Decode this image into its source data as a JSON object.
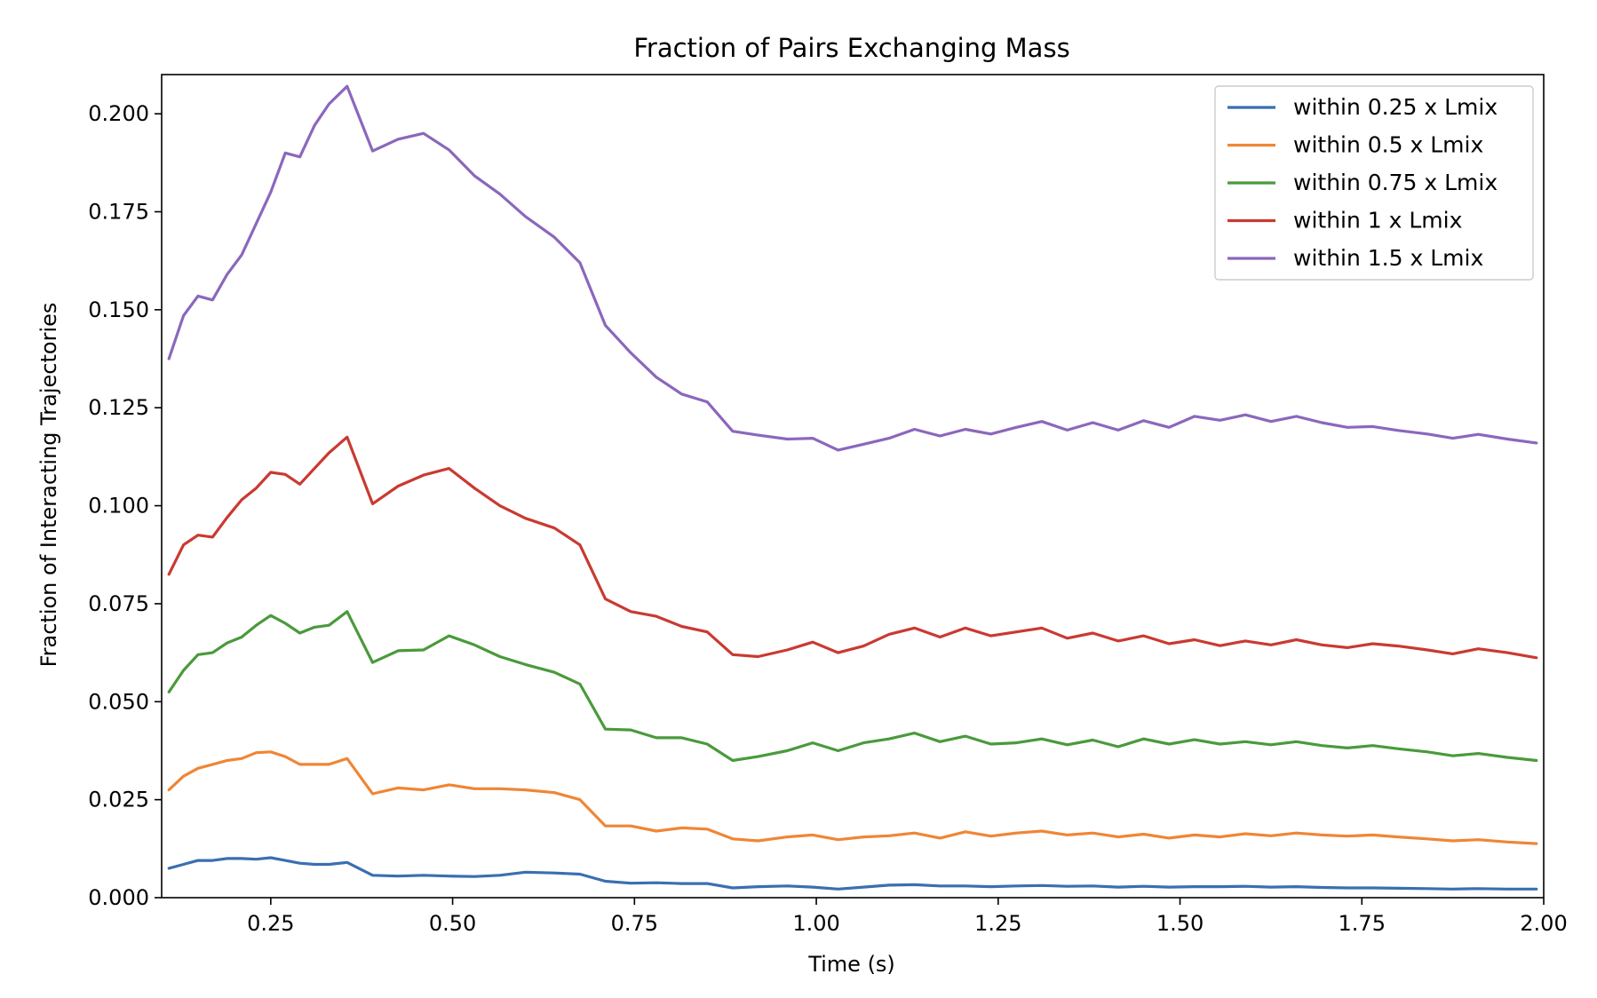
{
  "chart_data": {
    "type": "line",
    "title": "Fraction of Pairs Exchanging Mass",
    "xlabel": "Time (s)",
    "ylabel": "Fraction of Interacting Trajectories",
    "xlim": [
      0.1,
      2.0
    ],
    "ylim": [
      0.0,
      0.21
    ],
    "xticks": [
      "0.25",
      "0.50",
      "0.75",
      "1.00",
      "1.25",
      "1.50",
      "1.75",
      "2.00"
    ],
    "xtick_values": [
      0.25,
      0.5,
      0.75,
      1.0,
      1.25,
      1.5,
      1.75,
      2.0
    ],
    "yticks": [
      "0.000",
      "0.025",
      "0.050",
      "0.075",
      "0.100",
      "0.125",
      "0.150",
      "0.175",
      "0.200"
    ],
    "ytick_values": [
      0.0,
      0.025,
      0.05,
      0.075,
      0.1,
      0.125,
      0.15,
      0.175,
      0.2
    ],
    "grid": false,
    "legend_position": "top-right",
    "x": [
      0.11,
      0.13,
      0.15,
      0.17,
      0.19,
      0.21,
      0.23,
      0.25,
      0.27,
      0.29,
      0.31,
      0.33,
      0.355,
      0.39,
      0.425,
      0.46,
      0.495,
      0.53,
      0.565,
      0.6,
      0.64,
      0.675,
      0.71,
      0.745,
      0.78,
      0.815,
      0.85,
      0.885,
      0.92,
      0.96,
      0.995,
      1.03,
      1.065,
      1.1,
      1.135,
      1.17,
      1.205,
      1.24,
      1.275,
      1.31,
      1.345,
      1.38,
      1.415,
      1.45,
      1.485,
      1.52,
      1.555,
      1.59,
      1.625,
      1.66,
      1.695,
      1.73,
      1.765,
      1.8,
      1.84,
      1.875,
      1.91,
      1.95,
      1.99
    ],
    "series": [
      {
        "name": "within 0.25 x Lmix",
        "color": "#3a6fb0",
        "values": [
          0.0075,
          0.0085,
          0.0095,
          0.0095,
          0.01,
          0.01,
          0.0098,
          0.0102,
          0.0095,
          0.0088,
          0.0085,
          0.0085,
          0.009,
          0.0057,
          0.0055,
          0.0057,
          0.0055,
          0.0054,
          0.0057,
          0.0065,
          0.0063,
          0.006,
          0.0042,
          0.0037,
          0.0038,
          0.0036,
          0.0036,
          0.0025,
          0.0028,
          0.003,
          0.0027,
          0.0022,
          0.0027,
          0.0032,
          0.0033,
          0.003,
          0.003,
          0.0028,
          0.003,
          0.0031,
          0.0029,
          0.003,
          0.0027,
          0.0029,
          0.0027,
          0.0028,
          0.0028,
          0.0029,
          0.0027,
          0.0028,
          0.0026,
          0.0025,
          0.0025,
          0.0024,
          0.0023,
          0.0022,
          0.0023,
          0.0022,
          0.0022
        ]
      },
      {
        "name": "within 0.5 x Lmix",
        "color": "#ef8636",
        "values": [
          0.0275,
          0.031,
          0.033,
          0.034,
          0.035,
          0.0355,
          0.037,
          0.0372,
          0.036,
          0.034,
          0.034,
          0.034,
          0.0355,
          0.0265,
          0.028,
          0.0275,
          0.0288,
          0.0278,
          0.0278,
          0.0275,
          0.0268,
          0.025,
          0.0183,
          0.0183,
          0.017,
          0.0178,
          0.0175,
          0.015,
          0.0145,
          0.0155,
          0.016,
          0.0148,
          0.0155,
          0.0158,
          0.0165,
          0.0152,
          0.0168,
          0.0157,
          0.0165,
          0.017,
          0.016,
          0.0165,
          0.0155,
          0.0162,
          0.0152,
          0.016,
          0.0155,
          0.0163,
          0.0158,
          0.0165,
          0.016,
          0.0157,
          0.016,
          0.0155,
          0.015,
          0.0145,
          0.0148,
          0.0142,
          0.0138
        ]
      },
      {
        "name": "within 0.75 x Lmix",
        "color": "#4a9a3c",
        "values": [
          0.0525,
          0.058,
          0.062,
          0.0625,
          0.065,
          0.0665,
          0.0695,
          0.072,
          0.07,
          0.0675,
          0.069,
          0.0695,
          0.073,
          0.06,
          0.063,
          0.0632,
          0.0668,
          0.0645,
          0.0615,
          0.0595,
          0.0575,
          0.0545,
          0.043,
          0.0428,
          0.0408,
          0.0408,
          0.0392,
          0.035,
          0.036,
          0.0375,
          0.0395,
          0.0375,
          0.0395,
          0.0405,
          0.042,
          0.0398,
          0.0412,
          0.0392,
          0.0395,
          0.0405,
          0.039,
          0.0402,
          0.0385,
          0.0405,
          0.0392,
          0.0403,
          0.0392,
          0.0398,
          0.039,
          0.0398,
          0.0388,
          0.0382,
          0.0388,
          0.038,
          0.0372,
          0.0362,
          0.0368,
          0.0358,
          0.035
        ]
      },
      {
        "name": "within 1 x Lmix",
        "color": "#c93a31",
        "values": [
          0.0825,
          0.09,
          0.0925,
          0.092,
          0.097,
          0.1015,
          0.1045,
          0.1085,
          0.108,
          0.1055,
          0.1095,
          0.1135,
          0.1175,
          0.1005,
          0.105,
          0.1078,
          0.1095,
          0.1045,
          0.1,
          0.0968,
          0.0943,
          0.09,
          0.0762,
          0.073,
          0.0718,
          0.0692,
          0.0678,
          0.062,
          0.0615,
          0.0632,
          0.0652,
          0.0625,
          0.0642,
          0.0672,
          0.0688,
          0.0665,
          0.0688,
          0.0668,
          0.0678,
          0.0688,
          0.0662,
          0.0675,
          0.0655,
          0.0668,
          0.0648,
          0.0658,
          0.0643,
          0.0655,
          0.0645,
          0.0658,
          0.0645,
          0.0638,
          0.0648,
          0.0642,
          0.0632,
          0.0622,
          0.0635,
          0.0625,
          0.0612
        ]
      },
      {
        "name": "within 1.5 x Lmix",
        "color": "#8b67bc",
        "values": [
          0.1375,
          0.1485,
          0.1535,
          0.1525,
          0.159,
          0.164,
          0.172,
          0.18,
          0.19,
          0.189,
          0.197,
          0.2025,
          0.207,
          0.1905,
          0.1935,
          0.195,
          0.1908,
          0.1842,
          0.1795,
          0.1738,
          0.1685,
          0.162,
          0.146,
          0.139,
          0.1328,
          0.1285,
          0.1265,
          0.119,
          0.118,
          0.117,
          0.1172,
          0.1142,
          0.1157,
          0.1172,
          0.1195,
          0.1178,
          0.1195,
          0.1183,
          0.12,
          0.1215,
          0.1193,
          0.1212,
          0.1193,
          0.1217,
          0.12,
          0.1228,
          0.1218,
          0.1232,
          0.1215,
          0.1228,
          0.1212,
          0.12,
          0.1202,
          0.1192,
          0.1183,
          0.1172,
          0.1182,
          0.117,
          0.116
        ]
      }
    ]
  }
}
